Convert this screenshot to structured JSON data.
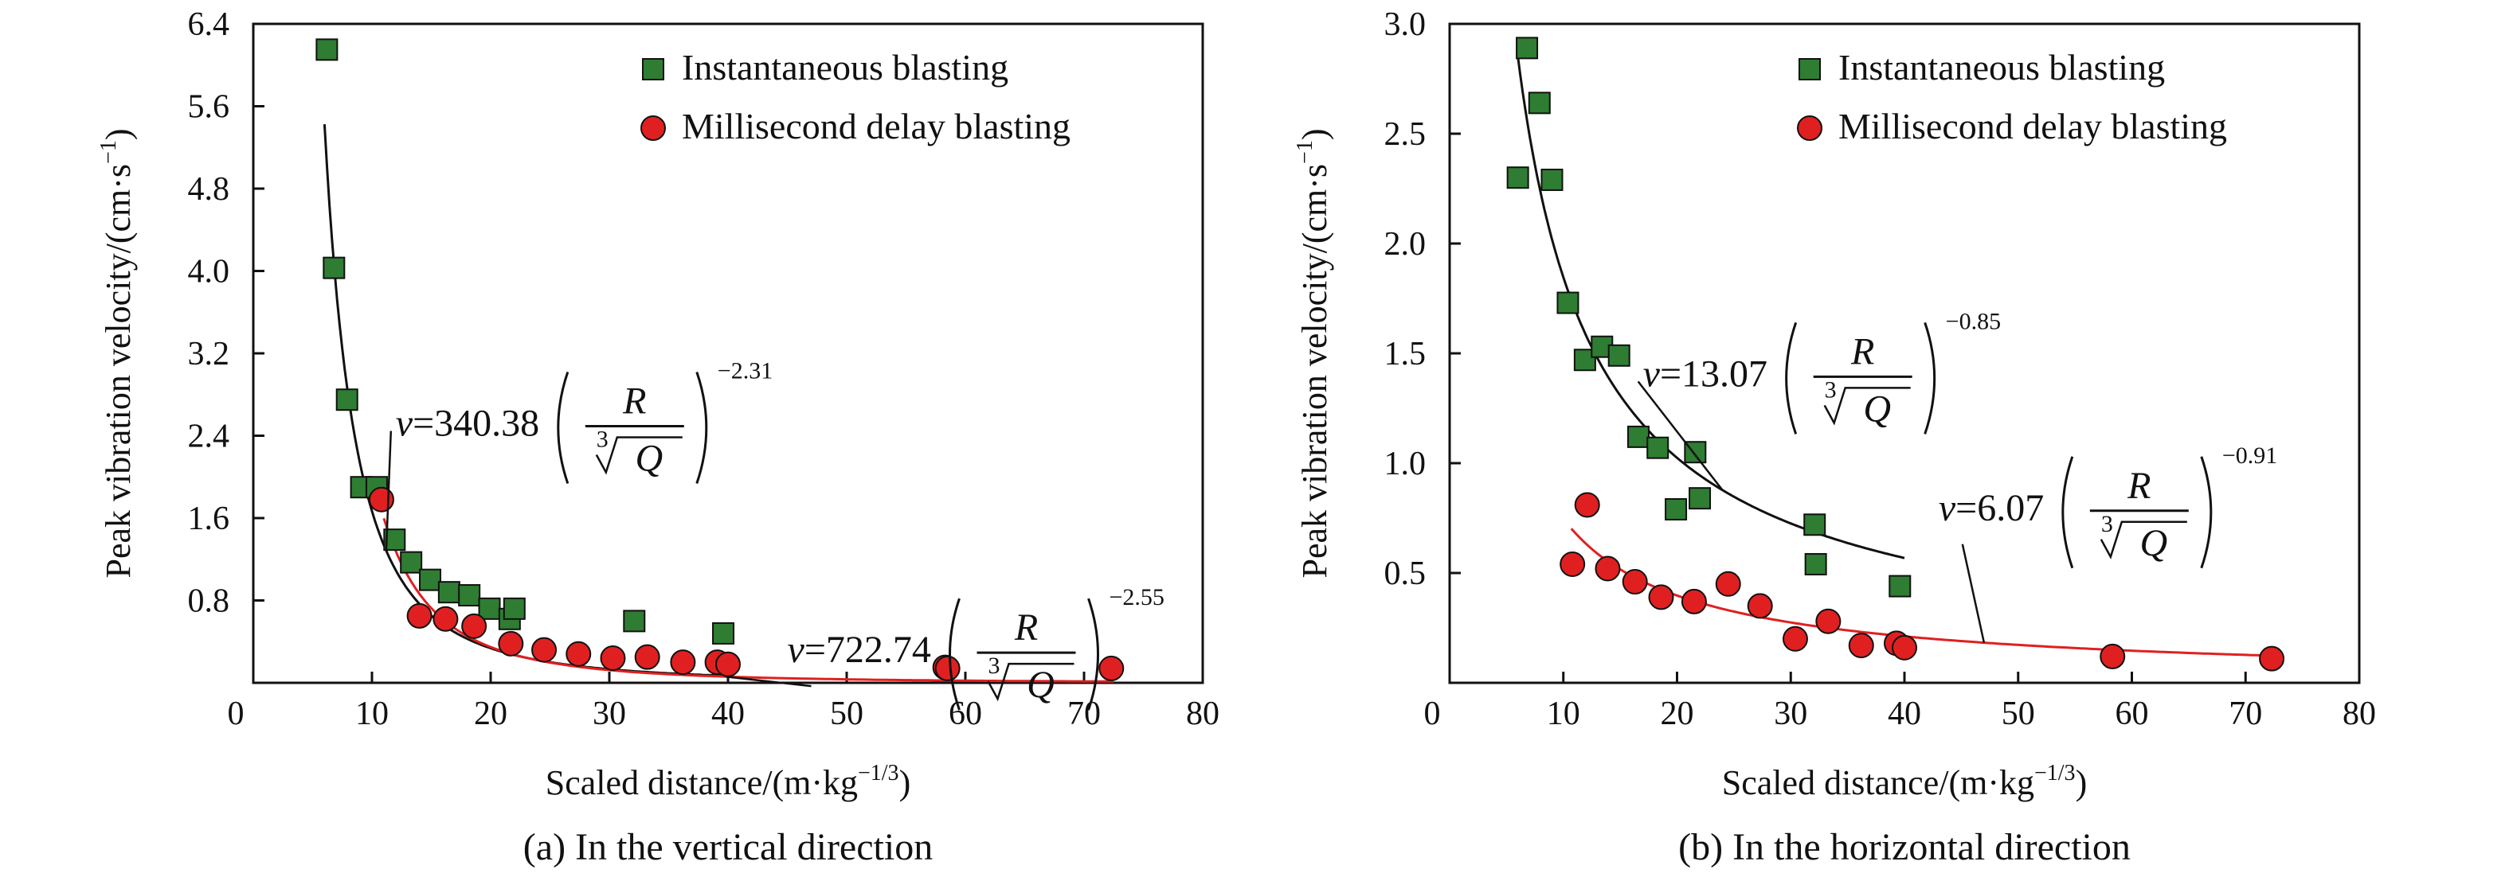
{
  "chart_data": [
    {
      "type": "scatter",
      "caption": "(a) In the vertical direction",
      "xlabel": "Scaled distance/(m·kg",
      "xlabel_exp": "−1/3",
      "xlabel_end": ")",
      "ylabel": "Peak vibration velocity/(cm·s",
      "ylabel_exp": "−1",
      "ylabel_end": ")",
      "xlim": [
        0,
        80
      ],
      "ylim": [
        0,
        6.4
      ],
      "xticks": [
        0,
        10,
        20,
        30,
        40,
        50,
        60,
        70,
        80
      ],
      "yticks": [
        0.8,
        1.6,
        2.4,
        3.2,
        4.0,
        4.8,
        5.6,
        6.4
      ],
      "xtick_labels": [
        "0",
        "10",
        "20",
        "30",
        "40",
        "50",
        "60",
        "70",
        "80"
      ],
      "ytick_labels": [
        "0.8",
        "1.6",
        "2.4",
        "3.2",
        "4.0",
        "4.8",
        "5.6",
        "6.4"
      ],
      "legend_position": "top-right",
      "series": [
        {
          "name": "Instantaneous blasting",
          "marker": "square",
          "color": "#2e7d32",
          "points": [
            [
              6.2,
              6.15
            ],
            [
              6.8,
              4.03
            ],
            [
              7.9,
              2.75
            ],
            [
              9.1,
              1.9
            ],
            [
              10.4,
              1.9
            ],
            [
              11.9,
              1.39
            ],
            [
              13.3,
              1.17
            ],
            [
              14.9,
              1.0
            ],
            [
              16.5,
              0.88
            ],
            [
              18.2,
              0.85
            ],
            [
              19.9,
              0.72
            ],
            [
              21.6,
              0.62
            ],
            [
              22.0,
              0.72
            ],
            [
              32.1,
              0.6
            ],
            [
              39.6,
              0.48
            ]
          ],
          "fit": {
            "a": 340.38,
            "b": -2.31,
            "x_range": [
              6.0,
              40.0
            ],
            "color": "#111111"
          }
        },
        {
          "name": "Millisecond delay blasting",
          "marker": "circle",
          "color": "#e02020",
          "points": [
            [
              10.8,
              1.78
            ],
            [
              14.0,
              0.65
            ],
            [
              16.2,
              0.62
            ],
            [
              18.6,
              0.55
            ],
            [
              21.7,
              0.38
            ],
            [
              24.5,
              0.32
            ],
            [
              27.4,
              0.28
            ],
            [
              30.3,
              0.24
            ],
            [
              33.2,
              0.25
            ],
            [
              36.2,
              0.2
            ],
            [
              39.1,
              0.2
            ],
            [
              40.0,
              0.18
            ],
            [
              58.3,
              0.15
            ],
            [
              58.5,
              0.14
            ],
            [
              72.3,
              0.14
            ]
          ],
          "fit": {
            "a": 722.74,
            "b": -2.55,
            "x_range": [
              11.0,
              72.5
            ],
            "color": "#e02020"
          }
        }
      ],
      "annotations": [
        {
          "coef": "340.38",
          "exp": "−2.31",
          "at": [
            12,
            2.4
          ]
        },
        {
          "coef": "722.74",
          "exp": "−2.55",
          "at": [
            45,
            0.2
          ]
        }
      ]
    },
    {
      "type": "scatter",
      "caption": "(b) In the horizontal direction",
      "xlabel": "Scaled distance/(m·kg",
      "xlabel_exp": "−1/3",
      "xlabel_end": ")",
      "ylabel": "Peak vibration velocity/(cm·s",
      "ylabel_exp": "−1",
      "ylabel_end": ")",
      "xlim": [
        0,
        80
      ],
      "ylim": [
        0,
        3.0
      ],
      "xticks": [
        0,
        10,
        20,
        30,
        40,
        50,
        60,
        70,
        80
      ],
      "yticks": [
        0.5,
        1.0,
        1.5,
        2.0,
        2.5,
        3.0
      ],
      "xtick_labels": [
        "0",
        "10",
        "20",
        "30",
        "40",
        "50",
        "60",
        "70",
        "80"
      ],
      "ytick_labels": [
        "0.5",
        "1.0",
        "1.5",
        "2.0",
        "2.5",
        "3.0"
      ],
      "legend_position": "top-right",
      "series": [
        {
          "name": "Instantaneous blasting",
          "marker": "square",
          "color": "#2e7d32",
          "points": [
            [
              6.0,
              2.3
            ],
            [
              6.8,
              2.89
            ],
            [
              7.9,
              2.64
            ],
            [
              9.0,
              2.29
            ],
            [
              10.4,
              1.73
            ],
            [
              11.9,
              1.47
            ],
            [
              13.4,
              1.53
            ],
            [
              14.9,
              1.49
            ],
            [
              16.6,
              1.12
            ],
            [
              18.3,
              1.07
            ],
            [
              19.9,
              0.79
            ],
            [
              21.6,
              1.05
            ],
            [
              22.0,
              0.84
            ],
            [
              32.1,
              0.72
            ],
            [
              32.2,
              0.54
            ],
            [
              39.6,
              0.44
            ]
          ],
          "fit": {
            "a": 13.07,
            "b": -0.85,
            "x_range": [
              6.0,
              40.0
            ],
            "color": "#111111"
          }
        },
        {
          "name": "Millisecond delay blasting",
          "marker": "circle",
          "color": "#e02020",
          "points": [
            [
              12.1,
              0.81
            ],
            [
              10.8,
              0.54
            ],
            [
              13.9,
              0.52
            ],
            [
              16.3,
              0.46
            ],
            [
              18.6,
              0.39
            ],
            [
              21.5,
              0.37
            ],
            [
              24.5,
              0.45
            ],
            [
              27.3,
              0.35
            ],
            [
              30.4,
              0.2
            ],
            [
              33.3,
              0.28
            ],
            [
              36.2,
              0.17
            ],
            [
              39.3,
              0.18
            ],
            [
              40.0,
              0.16
            ],
            [
              58.3,
              0.12
            ],
            [
              72.3,
              0.11
            ]
          ],
          "fit": {
            "a": 6.07,
            "b": -0.91,
            "x_range": [
              10.7,
              72.5
            ],
            "color": "#e02020"
          }
        }
      ],
      "annotations": [
        {
          "coef": "13.07",
          "exp": "−0.85",
          "at": [
            17,
            1.35
          ]
        },
        {
          "coef": "6.07",
          "exp": "−0.91",
          "at": [
            43,
            0.74
          ]
        }
      ]
    }
  ],
  "equation_symbols": {
    "v": "v",
    "R": "R",
    "Q": "Q",
    "root": "3"
  }
}
